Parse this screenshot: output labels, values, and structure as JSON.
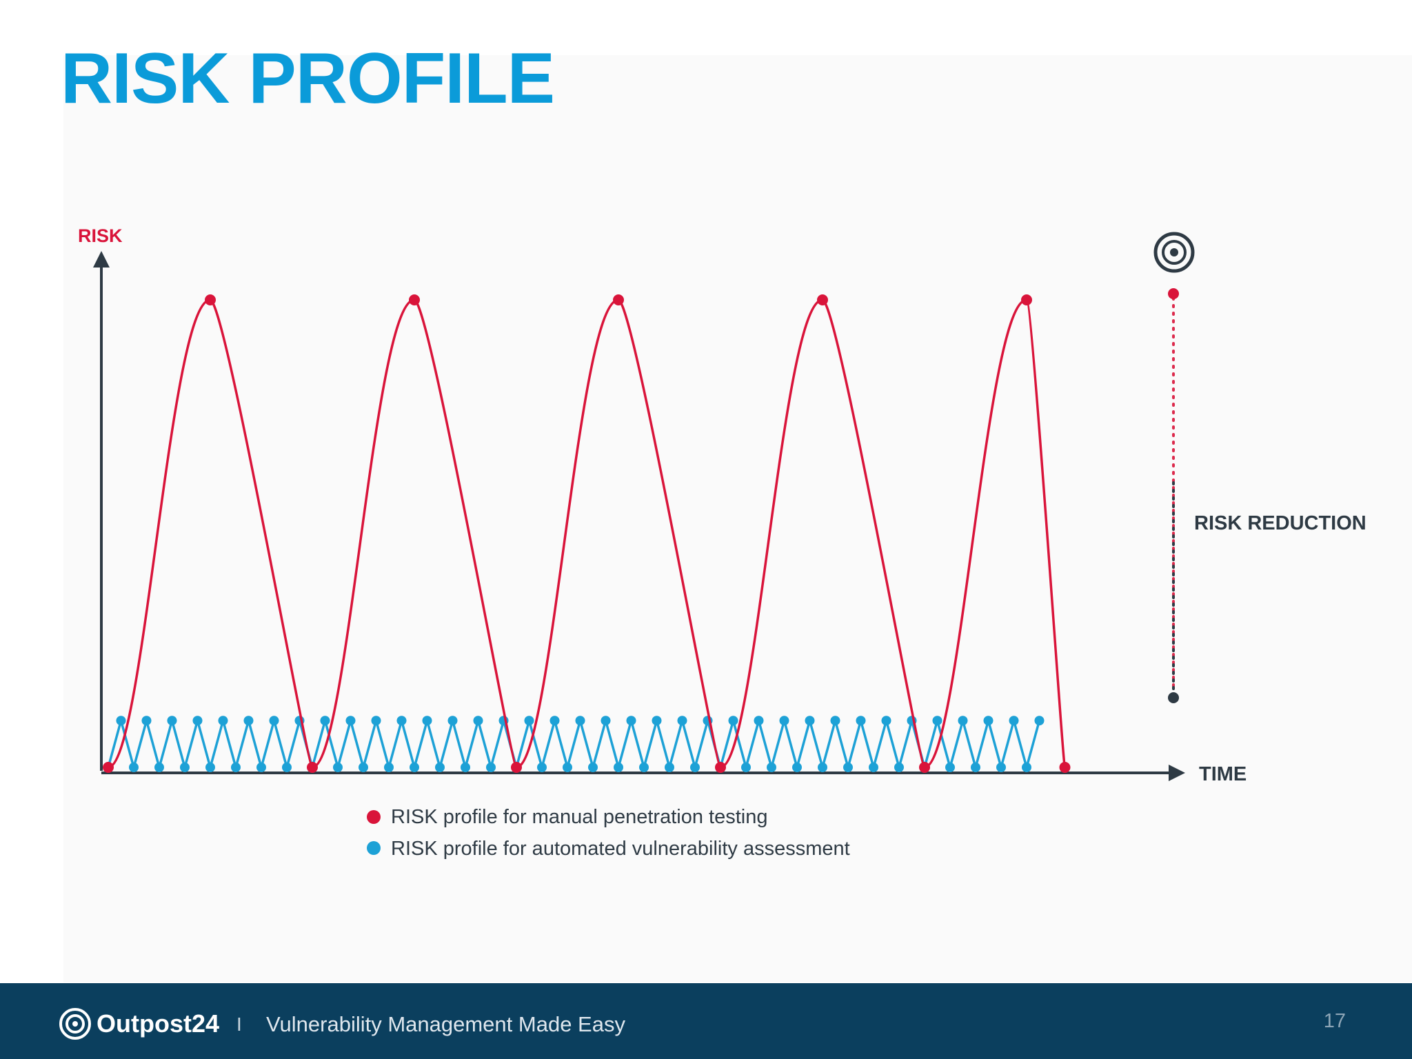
{
  "slide": {
    "title": "RISK PROFILE"
  },
  "footer": {
    "brand": "Outpost24",
    "separator": "I",
    "tagline": "Vulnerability Management Made Easy",
    "page_number": "17"
  },
  "colors": {
    "title": "#0b9bd9",
    "manual": "#d9143a",
    "automated": "#1da1d6",
    "axis": "#2e3a44",
    "footer_bg": "#0b3f5e"
  },
  "chart_data": {
    "type": "line",
    "title": "",
    "ylabel": "RISK",
    "xlabel": "TIME",
    "annotation": "RISK REDUCTION",
    "ticks": false,
    "legend_position": "bottom-center",
    "series": [
      {
        "name": "RISK profile for manual penetration testing",
        "color": "#d9143a",
        "x": [
          0,
          4,
          8,
          12,
          16,
          20,
          24,
          28,
          32,
          36
        ],
        "y": [
          0,
          1,
          0,
          1,
          0,
          1,
          0,
          1,
          0,
          1
        ],
        "last_x": 37.5,
        "last_y": 0
      },
      {
        "name": "RISK profile for automated vulnerability assessment",
        "color": "#1da1d6",
        "period": 1,
        "peak": 0.1,
        "start_x": 0,
        "end_x": 36.5
      }
    ]
  },
  "icons": {
    "target": "target-icon",
    "logo": "outpost24-logo-icon"
  }
}
